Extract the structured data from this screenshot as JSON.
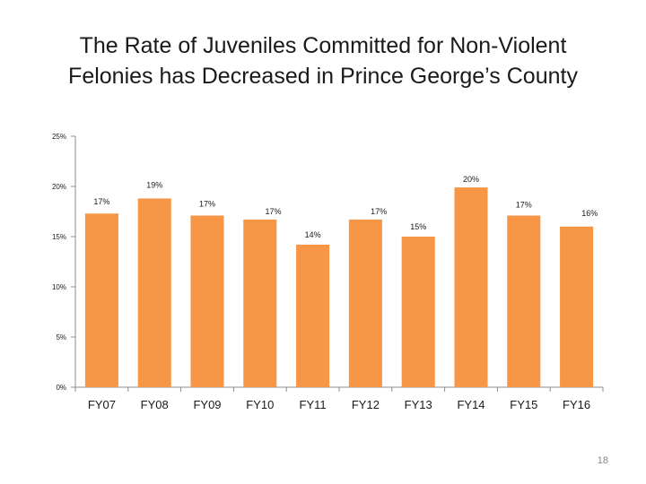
{
  "slide": {
    "title_line1": "The Rate of Juveniles Committed for Non-Violent",
    "title_line2": "Felonies has Decreased in Prince George’s County",
    "page_number": "18"
  },
  "colors": {
    "bar": "#F79646",
    "axis": "#8c8c8c",
    "text": "#1a1a1a"
  },
  "chart_data": {
    "type": "bar",
    "title": "The Rate of Juveniles Committed for Non-Violent Felonies has Decreased in Prince George’s County",
    "xlabel": "",
    "ylabel": "",
    "categories": [
      "FY07",
      "FY08",
      "FY09",
      "FY10",
      "FY11",
      "FY12",
      "FY13",
      "FY14",
      "FY15",
      "FY16"
    ],
    "values": [
      17.3,
      18.8,
      17.1,
      16.7,
      14.2,
      16.7,
      15.0,
      19.9,
      17.1,
      16.0
    ],
    "data_labels": [
      "17%",
      "19%",
      "17%",
      "17%",
      "14%",
      "17%",
      "15%",
      "20%",
      "17%",
      "16%"
    ],
    "ylim": [
      0,
      25
    ],
    "yticks": [
      0,
      5,
      10,
      15,
      20,
      25
    ],
    "ytick_labels": [
      "0%",
      "5%",
      "10%",
      "15%",
      "20%",
      "25%"
    ],
    "grid": false,
    "legend": "none"
  }
}
